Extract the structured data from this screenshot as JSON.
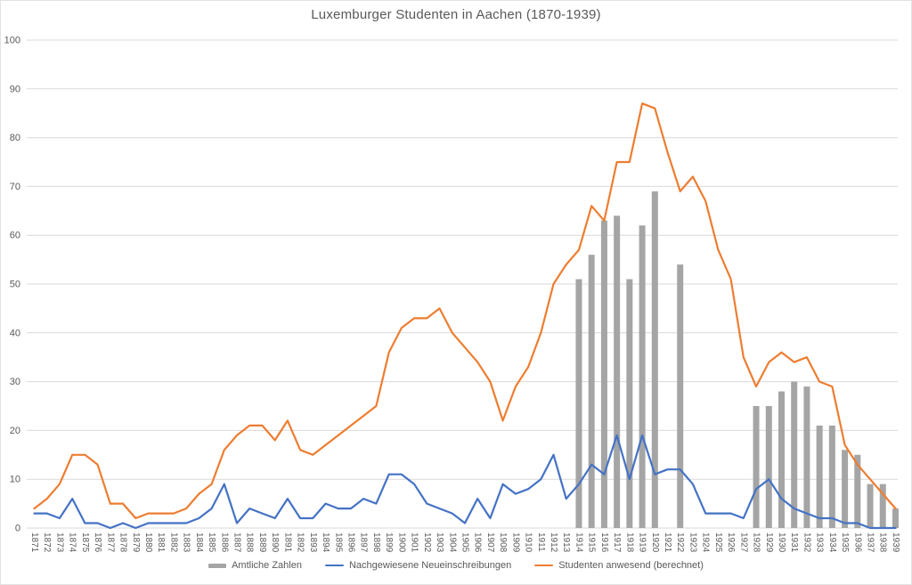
{
  "title": "Luxemburger Studenten in Aachen (1870-1939)",
  "colors": {
    "bar": "#A5A5A5",
    "line_blue": "#4472C4",
    "line_orange": "#ED7D31",
    "gridline": "#D9D9D9",
    "axis_text": "#595959",
    "title_text": "#595959",
    "background": "#FFFFFF"
  },
  "chart_data": {
    "type": "bar+line combo",
    "title": "Luxemburger Studenten in Aachen (1870-1939)",
    "xlabel": "",
    "ylabel": "",
    "ylim": [
      0,
      100
    ],
    "ytick_step": 10,
    "yticks": [
      0,
      10,
      20,
      30,
      40,
      50,
      60,
      70,
      80,
      90,
      100
    ],
    "grid": true,
    "legend_position": "bottom",
    "x": [
      1871,
      1872,
      1873,
      1874,
      1875,
      1876,
      1877,
      1878,
      1879,
      1880,
      1881,
      1882,
      1883,
      1884,
      1885,
      1886,
      1887,
      1888,
      1889,
      1890,
      1891,
      1892,
      1893,
      1894,
      1895,
      1896,
      1897,
      1898,
      1899,
      1900,
      1901,
      1902,
      1903,
      1904,
      1905,
      1906,
      1907,
      1908,
      1909,
      1910,
      1911,
      1912,
      1913,
      1914,
      1915,
      1916,
      1917,
      1918,
      1919,
      1920,
      1921,
      1922,
      1923,
      1924,
      1925,
      1926,
      1927,
      1928,
      1929,
      1930,
      1931,
      1932,
      1933,
      1934,
      1935,
      1936,
      1937,
      1938,
      1939
    ],
    "series": [
      {
        "name": "Amtliche Zahlen",
        "type": "bar",
        "color": "#A5A5A5",
        "values": [
          null,
          null,
          null,
          null,
          null,
          null,
          null,
          null,
          null,
          null,
          null,
          null,
          null,
          null,
          null,
          null,
          null,
          null,
          null,
          null,
          null,
          null,
          null,
          null,
          null,
          null,
          null,
          null,
          null,
          null,
          null,
          null,
          null,
          null,
          null,
          null,
          null,
          null,
          null,
          null,
          null,
          null,
          null,
          51,
          56,
          63,
          64,
          51,
          62,
          69,
          null,
          54,
          null,
          null,
          null,
          null,
          null,
          25,
          25,
          28,
          30,
          29,
          21,
          21,
          16,
          15,
          9,
          9,
          4
        ]
      },
      {
        "name": "Nachgewiesene Neueinschreibungen",
        "type": "line",
        "color": "#4472C4",
        "values": [
          3,
          3,
          2,
          6,
          1,
          1,
          0,
          1,
          0,
          1,
          1,
          1,
          1,
          2,
          4,
          9,
          1,
          4,
          3,
          2,
          6,
          2,
          2,
          5,
          4,
          4,
          6,
          5,
          11,
          11,
          9,
          5,
          4,
          3,
          1,
          6,
          2,
          9,
          7,
          8,
          10,
          15,
          6,
          9,
          13,
          11,
          19,
          10,
          19,
          11,
          12,
          12,
          9,
          3,
          3,
          3,
          2,
          8,
          10,
          6,
          4,
          3,
          2,
          2,
          1,
          1,
          0,
          0,
          0
        ]
      },
      {
        "name": "Studenten anwesend (berechnet)",
        "type": "line",
        "color": "#ED7D31",
        "values": [
          4,
          6,
          9,
          15,
          15,
          13,
          5,
          5,
          2,
          3,
          3,
          3,
          4,
          7,
          9,
          16,
          19,
          21,
          21,
          18,
          22,
          16,
          15,
          17,
          19,
          21,
          23,
          25,
          36,
          41,
          43,
          43,
          45,
          40,
          37,
          34,
          30,
          22,
          29,
          33,
          40,
          50,
          54,
          57,
          66,
          63,
          75,
          75,
          87,
          86,
          77,
          69,
          72,
          67,
          57,
          51,
          35,
          29,
          34,
          36,
          34,
          35,
          30,
          29,
          17,
          13,
          10,
          7,
          4
        ]
      }
    ]
  },
  "legend": {
    "items": [
      {
        "label": "Amtliche Zahlen"
      },
      {
        "label": "Nachgewiesene Neueinschreibungen"
      },
      {
        "label": "Studenten anwesend (berechnet)"
      }
    ]
  }
}
